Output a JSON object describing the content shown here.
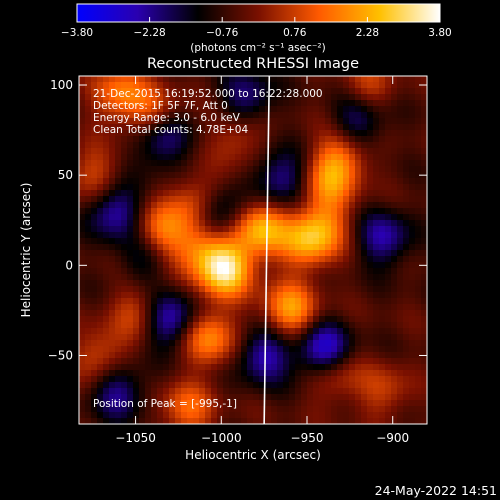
{
  "chart_data": {
    "type": "heatmap",
    "title": "Reconstructed RHESSI Image",
    "xlabel": "Heliocentric X (arcsec)",
    "ylabel": "Heliocentric Y (arcsec)",
    "xlim": [
      -1083,
      -880
    ],
    "ylim": [
      -88,
      105
    ],
    "x_ticks": [
      -1050,
      -1000,
      -950,
      -900
    ],
    "x_tick_labels": [
      "−1050",
      "−1000",
      "−950",
      "−900"
    ],
    "y_ticks": [
      -50,
      0,
      50,
      100
    ],
    "y_tick_labels": [
      "−50",
      "0",
      "50",
      "100"
    ],
    "colorbar": {
      "min": -3.8,
      "max": 3.8,
      "ticks": [
        -3.8,
        -2.28,
        -0.76,
        0.76,
        2.28,
        3.8
      ],
      "tick_labels": [
        "−3.80",
        "−2.28",
        "−0.76",
        "0.76",
        "2.28",
        "3.80"
      ],
      "unit_label": "(photons cm⁻² s⁻¹ asec⁻²)",
      "colormap": [
        "#0000ff",
        "#2a00b0",
        "#000000",
        "#7a1000",
        "#ff5a00",
        "#ffc000",
        "#ffffff"
      ]
    },
    "annotations": [
      "21-Dec-2015 16:19:52.000 to 16:22:28.000",
      "Detectors: 1F 5F 7F, Att 0",
      "Energy Range: 3.0 - 6.0 keV",
      "Clean  Total counts: 4.78E+04"
    ],
    "peak_label": "Position of Peak = [-995,-1]",
    "peak_position": [
      -995,
      -1
    ],
    "limb_line_x": [
      -972,
      -975
    ],
    "grid": false,
    "blobs": [
      {
        "x": -998,
        "y": -2,
        "value": 3.8
      },
      {
        "x": -1013,
        "y": 33,
        "value": 2.6
      },
      {
        "x": -977,
        "y": 20,
        "value": 2.9
      },
      {
        "x": -1013,
        "y": 10,
        "value": 2.0
      },
      {
        "x": -1037,
        "y": 18,
        "value": 2.2
      },
      {
        "x": -1007,
        "y": -40,
        "value": 2.4
      },
      {
        "x": -950,
        "y": 13,
        "value": 2.3
      },
      {
        "x": -960,
        "y": -25,
        "value": 2.6
      },
      {
        "x": -940,
        "y": 22,
        "value": 1.6
      },
      {
        "x": -930,
        "y": 60,
        "value": 2.0
      },
      {
        "x": -938,
        "y": 45,
        "value": 1.8
      },
      {
        "x": -1060,
        "y": 95,
        "value": 2.0
      },
      {
        "x": -1040,
        "y": 85,
        "value": 1.6
      },
      {
        "x": -1020,
        "y": -80,
        "value": 1.8
      },
      {
        "x": -1075,
        "y": 50,
        "value": 1.4
      },
      {
        "x": -1070,
        "y": -50,
        "value": 1.5
      },
      {
        "x": -915,
        "y": 98,
        "value": 1.3
      },
      {
        "x": -905,
        "y": -70,
        "value": 1.2
      },
      {
        "x": -1048,
        "y": -25,
        "value": 1.4
      },
      {
        "x": -990,
        "y": 72,
        "value": 1.3
      },
      {
        "x": -935,
        "y": -60,
        "value": 1.7
      },
      {
        "x": -1035,
        "y": 70,
        "value": -2.0
      },
      {
        "x": -1062,
        "y": 30,
        "value": -2.2
      },
      {
        "x": -1005,
        "y": 28,
        "value": -2.8
      },
      {
        "x": -1030,
        "y": -30,
        "value": -2.4
      },
      {
        "x": -940,
        "y": -48,
        "value": -3.0
      },
      {
        "x": -975,
        "y": -50,
        "value": -2.2
      },
      {
        "x": -965,
        "y": 48,
        "value": -2.0
      },
      {
        "x": -985,
        "y": 92,
        "value": -1.8
      },
      {
        "x": -905,
        "y": 15,
        "value": -2.0
      },
      {
        "x": -1060,
        "y": -70,
        "value": -1.9
      },
      {
        "x": -920,
        "y": 80,
        "value": -1.8
      },
      {
        "x": -1045,
        "y": 5,
        "value": -1.4
      }
    ]
  },
  "footer": {
    "timestamp": "24-May-2022 14:51"
  }
}
